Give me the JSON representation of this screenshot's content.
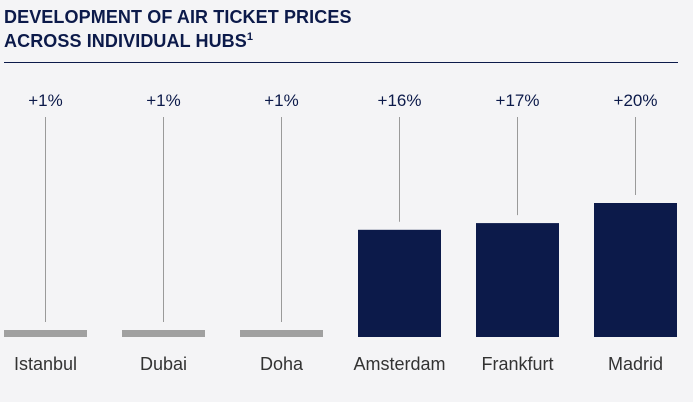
{
  "header": {
    "title_line1": "DEVELOPMENT OF AIR TICKET PRICES",
    "title_line2": "ACROSS INDIVIDUAL HUBS",
    "footnote_mark": "1"
  },
  "colors": {
    "bar_positive_large": "#0c1a4a",
    "bar_small": "#a0a0a0",
    "leader_line": "#9a9a9a",
    "text_dark": "#0c1a4a",
    "text_labels": "#333333",
    "background": "#f4f4f6"
  },
  "chart_data": {
    "type": "bar",
    "title": "DEVELOPMENT OF AIR TICKET PRICES ACROSS INDIVIDUAL HUBS",
    "categories": [
      "Istanbul",
      "Dubai",
      "Doha",
      "Amsterdam",
      "Frankfurt",
      "Madrid"
    ],
    "values": [
      1,
      1,
      1,
      16,
      17,
      20
    ],
    "data_labels": [
      "+1%",
      "+1%",
      "+1%",
      "+16%",
      "+17%",
      "+20%"
    ],
    "unit": "%",
    "ylim": [
      0,
      20
    ],
    "grid": false,
    "legend": "none"
  }
}
